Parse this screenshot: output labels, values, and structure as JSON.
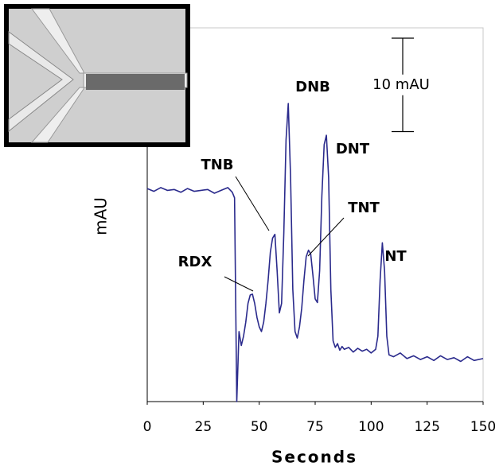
{
  "chart_data": {
    "type": "line",
    "x_label": "Seconds",
    "y_label": "mAU",
    "x": [
      0,
      3,
      6,
      9,
      12,
      15,
      18,
      21,
      24,
      27,
      30,
      33,
      36,
      38,
      39,
      40,
      41,
      42,
      43,
      44,
      45,
      46,
      47,
      48,
      49,
      50,
      51,
      52,
      53,
      54,
      55,
      56,
      57,
      58,
      59,
      60,
      61,
      62,
      63,
      64,
      65,
      66,
      67,
      68,
      69,
      70,
      71,
      72,
      73,
      74,
      75,
      76,
      77,
      78,
      79,
      80,
      81,
      82,
      83,
      84,
      85,
      86,
      87,
      88,
      90,
      92,
      94,
      96,
      98,
      100,
      102,
      103,
      104,
      105,
      106,
      107,
      108,
      110,
      113,
      116,
      119,
      122,
      125,
      128,
      131,
      134,
      137,
      140,
      143,
      146,
      150
    ],
    "series": [
      {
        "color": "#2a2a8c",
        "values": [
          22.8,
          22.5,
          22.9,
          22.6,
          22.7,
          22.4,
          22.8,
          22.5,
          22.6,
          22.7,
          22.3,
          22.6,
          22.9,
          22.4,
          21.8,
          0,
          7.5,
          6.0,
          7.0,
          8.5,
          10.5,
          11.4,
          11.5,
          10.5,
          9.0,
          8.0,
          7.5,
          8.5,
          10.5,
          13.0,
          16.0,
          17.5,
          17.9,
          14.0,
          9.5,
          10.5,
          18.0,
          28.0,
          31.9,
          24.0,
          12.0,
          7.5,
          6.8,
          8.0,
          10.0,
          13.0,
          15.5,
          16.2,
          15.8,
          13.5,
          11.0,
          10.6,
          14.0,
          22.0,
          27.5,
          28.5,
          24.0,
          12.0,
          6.5,
          5.8,
          6.2,
          5.5,
          5.9,
          5.6,
          5.8,
          5.3,
          5.7,
          5.4,
          5.6,
          5.2,
          5.6,
          7.0,
          13.0,
          17.0,
          14.0,
          7.0,
          5.0,
          4.8,
          5.2,
          4.6,
          4.9,
          4.5,
          4.8,
          4.4,
          4.9,
          4.5,
          4.7,
          4.3,
          4.8,
          4.4,
          4.6
        ]
      }
    ],
    "xlim": [
      0,
      150
    ],
    "xticks": [
      0,
      25,
      50,
      75,
      100,
      125,
      150
    ],
    "ylim": [
      0,
      40
    ],
    "annotations": [
      "RDX",
      "TNB",
      "DNB",
      "TNT",
      "DNT",
      "NT"
    ],
    "scale_bar": {
      "value": 10,
      "label": "10 mAU"
    }
  }
}
